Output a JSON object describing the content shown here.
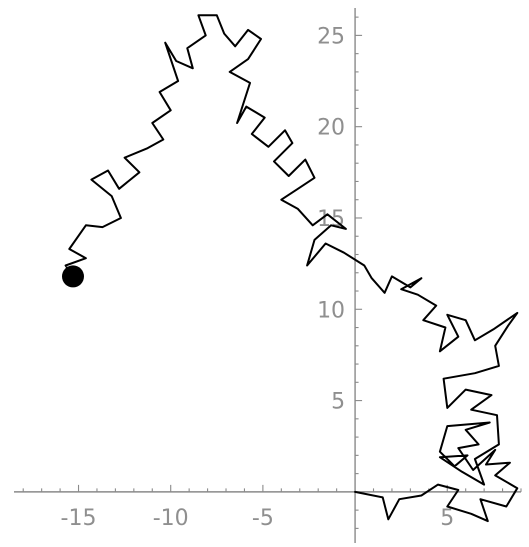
{
  "chart_data": {
    "type": "line",
    "title": "",
    "xlabel": "",
    "ylabel": "",
    "xlim": [
      -18.5,
      9
    ],
    "ylim": [
      -2.8,
      26.5
    ],
    "grid": false,
    "axes_style": "crossing-at-origin",
    "colors": {
      "path": "#000000",
      "marker": "#000000",
      "axis": "#8a8a8a",
      "tick_label": "#8f8f8f"
    },
    "x_ticks": [
      {
        "value": -15,
        "label": "-15"
      },
      {
        "value": -10,
        "label": "-10"
      },
      {
        "value": -5,
        "label": "-5"
      },
      {
        "value": 5,
        "label": "5"
      }
    ],
    "y_ticks": [
      {
        "value": 5,
        "label": "5"
      },
      {
        "value": 10,
        "label": "10"
      },
      {
        "value": 15,
        "label": "15"
      },
      {
        "value": 20,
        "label": "20"
      },
      {
        "value": 25,
        "label": "25"
      }
    ],
    "series": [
      {
        "start": [
          0,
          0
        ],
        "end_marker": [
          -15.3,
          11.8
        ],
        "points": [
          [
            0,
            0
          ],
          [
            1.5,
            -0.3
          ],
          [
            1.8,
            -1.5
          ],
          [
            2.4,
            -0.4
          ],
          [
            3.6,
            -0.2
          ],
          [
            4.5,
            0.4
          ],
          [
            5.6,
            0.1
          ],
          [
            5,
            -0.8
          ],
          [
            6.3,
            -1.2
          ],
          [
            7.2,
            -1.6
          ],
          [
            6.8,
            -0.4
          ],
          [
            8.2,
            -0.8
          ],
          [
            8.8,
            0.2
          ],
          [
            7.6,
            0.9
          ],
          [
            8.4,
            1.6
          ],
          [
            7.1,
            1.5
          ],
          [
            7.6,
            2.3
          ],
          [
            6.4,
            1.2
          ],
          [
            5.6,
            2.4
          ],
          [
            6.7,
            2.6
          ],
          [
            6,
            3.4
          ],
          [
            7.3,
            3.8
          ],
          [
            5,
            3.6
          ],
          [
            4.6,
            2.2
          ],
          [
            5.4,
            1.4
          ],
          [
            6.1,
            2
          ],
          [
            4.6,
            1.9
          ],
          [
            5.8,
            1.1
          ],
          [
            7,
            0.4
          ],
          [
            6.5,
            1.8
          ],
          [
            7.8,
            2.6
          ],
          [
            7.7,
            4.2
          ],
          [
            6.3,
            4.5
          ],
          [
            7.4,
            5.3
          ],
          [
            6,
            5.6
          ],
          [
            5,
            4.6
          ],
          [
            4.8,
            6.2
          ],
          [
            6.5,
            6.5
          ],
          [
            7.8,
            6.9
          ],
          [
            7.6,
            8
          ],
          [
            8.3,
            9.1
          ],
          [
            8.8,
            9.8
          ],
          [
            7.5,
            8.9
          ],
          [
            6.5,
            8.3
          ],
          [
            6,
            9.4
          ],
          [
            5,
            9.7
          ],
          [
            5.6,
            8.5
          ],
          [
            4.6,
            7.7
          ],
          [
            4.9,
            9
          ],
          [
            3.7,
            9.4
          ],
          [
            4.4,
            10.2
          ],
          [
            3.4,
            10.8
          ],
          [
            2.5,
            11.1
          ],
          [
            3.6,
            11.7
          ],
          [
            3,
            11.2
          ],
          [
            2,
            11.8
          ],
          [
            1.6,
            10.9
          ],
          [
            0.9,
            11.7
          ],
          [
            0.5,
            12.4
          ],
          [
            -0.6,
            13.1
          ],
          [
            -1.6,
            13.6
          ],
          [
            -2.6,
            12.4
          ],
          [
            -2.2,
            13.8
          ],
          [
            -1.3,
            14.6
          ],
          [
            -0.5,
            14.4
          ],
          [
            -1.5,
            15.2
          ],
          [
            -2.3,
            14.6
          ],
          [
            -3.1,
            15.5
          ],
          [
            -4,
            16
          ],
          [
            -3.1,
            16.6
          ],
          [
            -2.2,
            17.2
          ],
          [
            -2.7,
            18.2
          ],
          [
            -3.6,
            17.3
          ],
          [
            -4.4,
            18.1
          ],
          [
            -3.4,
            19.1
          ],
          [
            -3.8,
            19.8
          ],
          [
            -4.7,
            18.9
          ],
          [
            -5.6,
            19.6
          ],
          [
            -4.9,
            20.5
          ],
          [
            -5.9,
            21.1
          ],
          [
            -6.4,
            20.2
          ],
          [
            -5.7,
            22.4
          ],
          [
            -6.8,
            23
          ],
          [
            -5.8,
            23.7
          ],
          [
            -5.1,
            24.8
          ],
          [
            -5.8,
            25.3
          ],
          [
            -6.5,
            24.4
          ],
          [
            -7.1,
            25.1
          ],
          [
            -7.5,
            26.1
          ],
          [
            -8.5,
            26.1
          ],
          [
            -8.1,
            25
          ],
          [
            -9.1,
            24.3
          ],
          [
            -8.8,
            23.2
          ],
          [
            -9.7,
            23.6
          ],
          [
            -10.3,
            24.6
          ],
          [
            -9.6,
            22.5
          ],
          [
            -10.6,
            21.9
          ],
          [
            -10,
            20.9
          ],
          [
            -11,
            20.2
          ],
          [
            -10.4,
            19.3
          ],
          [
            -11.3,
            18.8
          ],
          [
            -12.5,
            18.3
          ],
          [
            -11.7,
            17.5
          ],
          [
            -12.8,
            16.6
          ],
          [
            -13.4,
            17.6
          ],
          [
            -14.3,
            17.1
          ],
          [
            -13.2,
            16.2
          ],
          [
            -12.7,
            15
          ],
          [
            -13.7,
            14.5
          ],
          [
            -14.6,
            14.6
          ],
          [
            -15.5,
            13.3
          ],
          [
            -14.6,
            12.8
          ],
          [
            -15.7,
            12.4
          ],
          [
            -15.3,
            11.8
          ]
        ]
      }
    ]
  }
}
